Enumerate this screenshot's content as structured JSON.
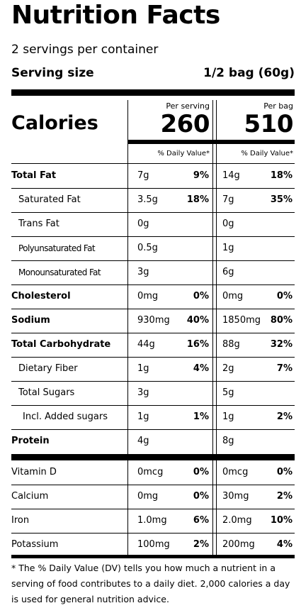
{
  "title": "Nutrition Facts",
  "servings_per_container": "2 servings per container",
  "serving_size": {
    "label": "Serving size",
    "value": "1/2 bag (60g)"
  },
  "calories": {
    "label": "Calories",
    "per_serving_label": "Per serving",
    "per_serving": "260",
    "per_bag_label": "Per bag",
    "per_bag": "510"
  },
  "dv_header": "% Daily Value*",
  "nutrients": [
    {
      "name": "Total Fat",
      "style": "bold",
      "s_amt": "7g",
      "s_pct": "9%",
      "b_amt": "14g",
      "b_pct": "18%"
    },
    {
      "name": "Saturated Fat",
      "style": "indent1",
      "s_amt": "3.5g",
      "s_pct": "18%",
      "b_amt": "7g",
      "b_pct": "35%"
    },
    {
      "name": "Trans Fat",
      "style": "indent1",
      "s_amt": "0g",
      "s_pct": "",
      "b_amt": "0g",
      "b_pct": ""
    },
    {
      "name": "Polyunsaturated Fat",
      "style": "indent1 narrow",
      "s_amt": "0.5g",
      "s_pct": "",
      "b_amt": "1g",
      "b_pct": ""
    },
    {
      "name": "Monounsaturated Fat",
      "style": "indent1 narrow",
      "s_amt": "3g",
      "s_pct": "",
      "b_amt": "6g",
      "b_pct": ""
    },
    {
      "name": "Cholesterol",
      "style": "bold",
      "s_amt": "0mg",
      "s_pct": "0%",
      "b_amt": "0mg",
      "b_pct": "0%"
    },
    {
      "name": "Sodium",
      "style": "bold",
      "s_amt": "930mg",
      "s_pct": "40%",
      "b_amt": "1850mg",
      "b_pct": "80%"
    },
    {
      "name": "Total Carbohydrate",
      "style": "bold",
      "s_amt": "44g",
      "s_pct": "16%",
      "b_amt": "88g",
      "b_pct": "32%"
    },
    {
      "name": "Dietary Fiber",
      "style": "indent1",
      "s_amt": "1g",
      "s_pct": "4%",
      "b_amt": "2g",
      "b_pct": "7%"
    },
    {
      "name": "Total Sugars",
      "style": "indent1",
      "s_amt": "3g",
      "s_pct": "",
      "b_amt": "5g",
      "b_pct": ""
    },
    {
      "name": "Incl. Added sugars",
      "style": "indent2",
      "s_amt": "1g",
      "s_pct": "1%",
      "b_amt": "1g",
      "b_pct": "2%"
    },
    {
      "name": "Protein",
      "style": "bold",
      "s_amt": "4g",
      "s_pct": "",
      "b_amt": "8g",
      "b_pct": ""
    }
  ],
  "vitamins": [
    {
      "name": "Vitamin D",
      "s_amt": "0mcg",
      "s_pct": "0%",
      "b_amt": "0mcg",
      "b_pct": "0%"
    },
    {
      "name": "Calcium",
      "s_amt": "0mg",
      "s_pct": "0%",
      "b_amt": "30mg",
      "b_pct": "2%"
    },
    {
      "name": "Iron",
      "s_amt": "1.0mg",
      "s_pct": "6%",
      "b_amt": "2.0mg",
      "b_pct": "10%"
    },
    {
      "name": "Potassium",
      "s_amt": "100mg",
      "s_pct": "2%",
      "b_amt": "200mg",
      "b_pct": "4%"
    }
  ],
  "footnote": "* The % Daily Value (DV) tells you how much a nutrient in a serving of food contributes to a daily diet. 2,000 calories a day is used for general nutrition advice."
}
